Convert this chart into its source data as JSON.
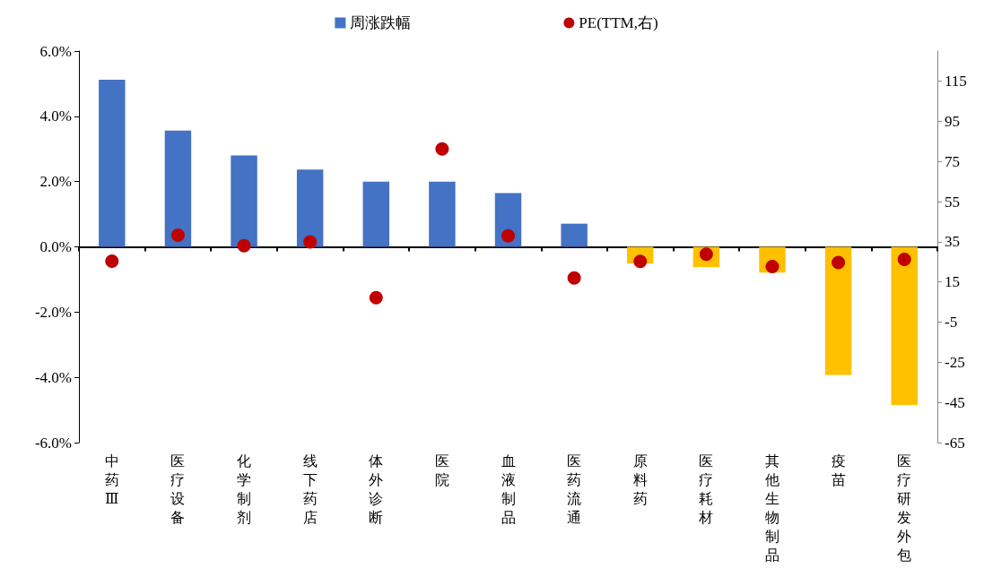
{
  "chart_data": {
    "type": "bar",
    "categories": [
      "中药Ⅲ",
      "医疗设备",
      "化学制剂",
      "线下药店",
      "体外诊断",
      "医院",
      "血液制品",
      "医药流通",
      "原料药",
      "医疗耗材",
      "其他生物制品",
      "疫苗",
      "医疗研发外包"
    ],
    "series": [
      {
        "name": "周涨跌幅",
        "color": "#4472c4",
        "colors": [
          "#4472c4",
          "#4472c4",
          "#4472c4",
          "#4472c4",
          "#4472c4",
          "#4472c4",
          "#4472c4",
          "#4472c4",
          "#ffc000",
          "#ffc000",
          "#ffc000",
          "#ffc000",
          "#ffc000"
        ],
        "values": [
          5.12,
          3.56,
          2.8,
          2.37,
          2.0,
          2.0,
          1.65,
          0.71,
          -0.51,
          -0.62,
          -0.79,
          -3.93,
          -4.85
        ]
      },
      {
        "name": "PE(TTM,右)",
        "type": "scatter",
        "axis": "y2",
        "color": "#c00000",
        "marker": "circle",
        "values": [
          25.4,
          38.3,
          33.1,
          35.0,
          7.2,
          81.3,
          38.0,
          17.0,
          25.2,
          28.8,
          22.7,
          24.7,
          26.2
        ]
      }
    ],
    "ylim": [
      -6,
      6
    ],
    "yticks": [
      {
        "value": -6,
        "label": "-6.0%"
      },
      {
        "value": -4,
        "label": "-4.0%"
      },
      {
        "value": -2,
        "label": "-2.0%"
      },
      {
        "value": 0,
        "label": "0.0%"
      },
      {
        "value": 2,
        "label": "2.0%"
      },
      {
        "value": 4,
        "label": "4.0%"
      },
      {
        "value": 6,
        "label": "6.0%"
      }
    ],
    "y2lim": [
      -65,
      130
    ],
    "y2ticks": [
      -65,
      -45,
      -25,
      -5,
      15,
      35,
      55,
      75,
      95,
      115
    ],
    "legend": "top"
  }
}
